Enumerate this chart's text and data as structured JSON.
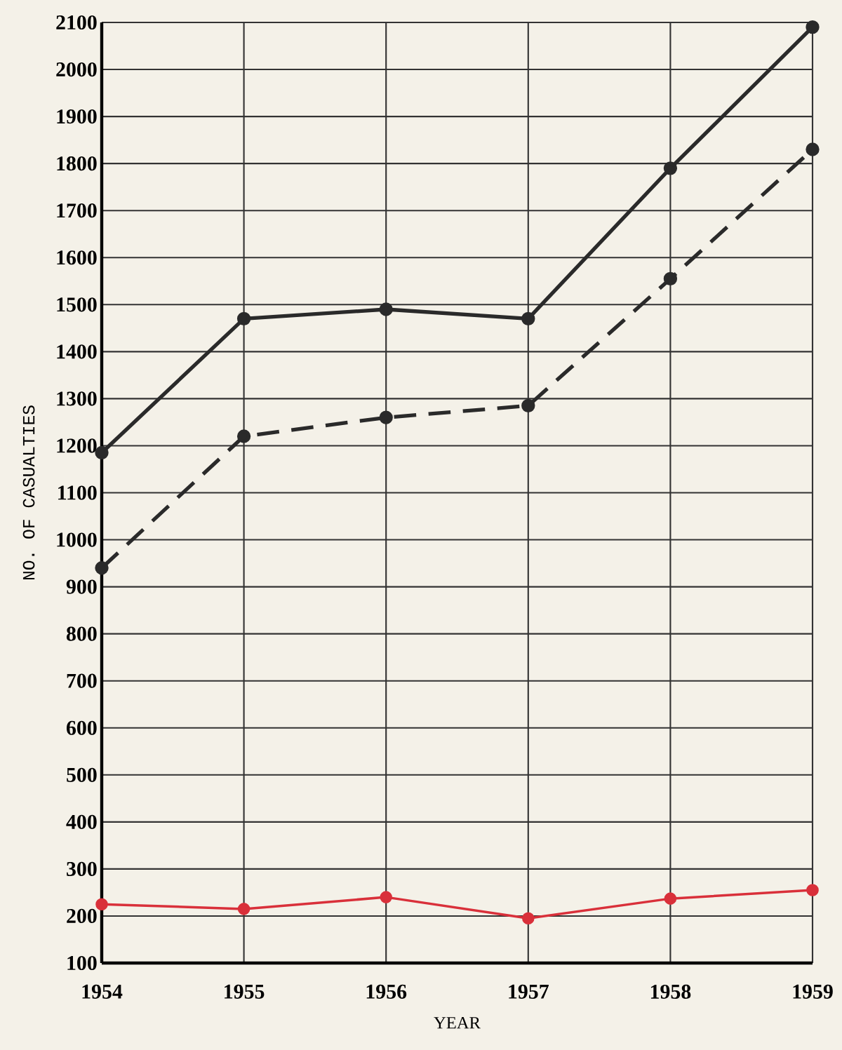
{
  "chart_data": {
    "type": "line",
    "xlabel": "YEAR",
    "ylabel": "NO. OF CASUALTIES",
    "x": [
      1954,
      1955,
      1956,
      1957,
      1958,
      1959
    ],
    "series": [
      {
        "color": "#2a2a2a",
        "line_style": "solid",
        "values": [
          1185,
          1470,
          1490,
          1470,
          1790,
          2090
        ]
      },
      {
        "color": "#2a2a2a",
        "line_style": "dashed",
        "values": [
          940,
          1220,
          1260,
          1285,
          1555,
          1830
        ]
      },
      {
        "color": "#d9303a",
        "line_style": "solid",
        "values": [
          225,
          215,
          240,
          195,
          237,
          255
        ]
      }
    ],
    "xlim": [
      1954,
      1959
    ],
    "xticks": [
      1954,
      1955,
      1956,
      1957,
      1958,
      1959
    ],
    "ylim": [
      100,
      2100
    ],
    "yticks": [
      100,
      200,
      300,
      400,
      500,
      600,
      700,
      800,
      900,
      1000,
      1100,
      1200,
      1300,
      1400,
      1500,
      1600,
      1700,
      1800,
      1900,
      2000,
      2100
    ],
    "grid": true,
    "marker": "circle"
  }
}
